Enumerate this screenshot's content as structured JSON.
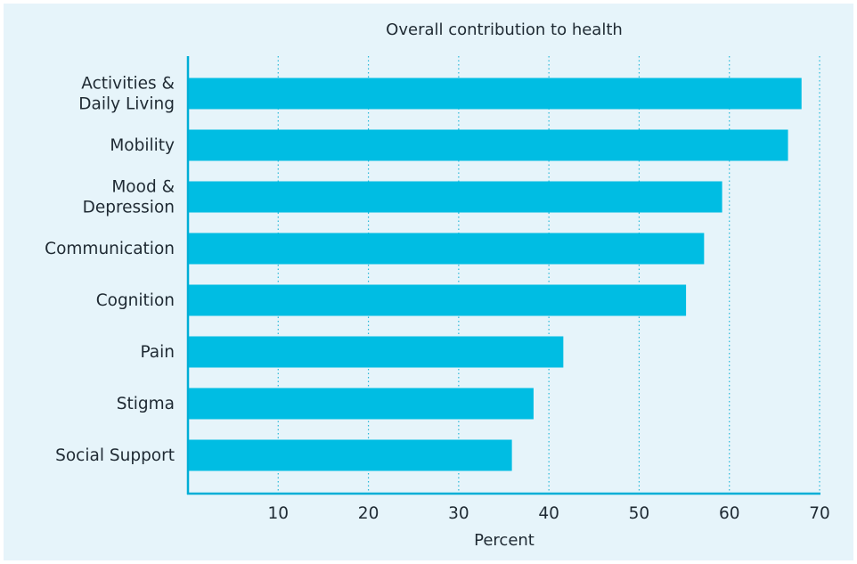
{
  "chart_data": {
    "type": "bar",
    "orientation": "horizontal",
    "title": "Overall contribution to health",
    "xlabel": "Percent",
    "ylabel": "",
    "categories": [
      [
        "Activities &",
        "Daily Living"
      ],
      [
        "Mobility"
      ],
      [
        "Mood &",
        "Depression"
      ],
      [
        "Communication"
      ],
      [
        "Cognition"
      ],
      [
        "Pain"
      ],
      [
        "Stigma"
      ],
      [
        "Social Support"
      ]
    ],
    "values": [
      68,
      66.5,
      59.2,
      57.2,
      55.2,
      41.6,
      38.3,
      35.9
    ],
    "xlim": [
      0,
      70
    ],
    "xticks": [
      10,
      20,
      30,
      40,
      50,
      60,
      70
    ],
    "grid": "vertical-dotted",
    "colors": {
      "bar": "#00bde3",
      "axis": "#00aed6",
      "grid": "#2ab8d8",
      "background": "#e6f4fa",
      "text": "#1f2a33"
    }
  }
}
